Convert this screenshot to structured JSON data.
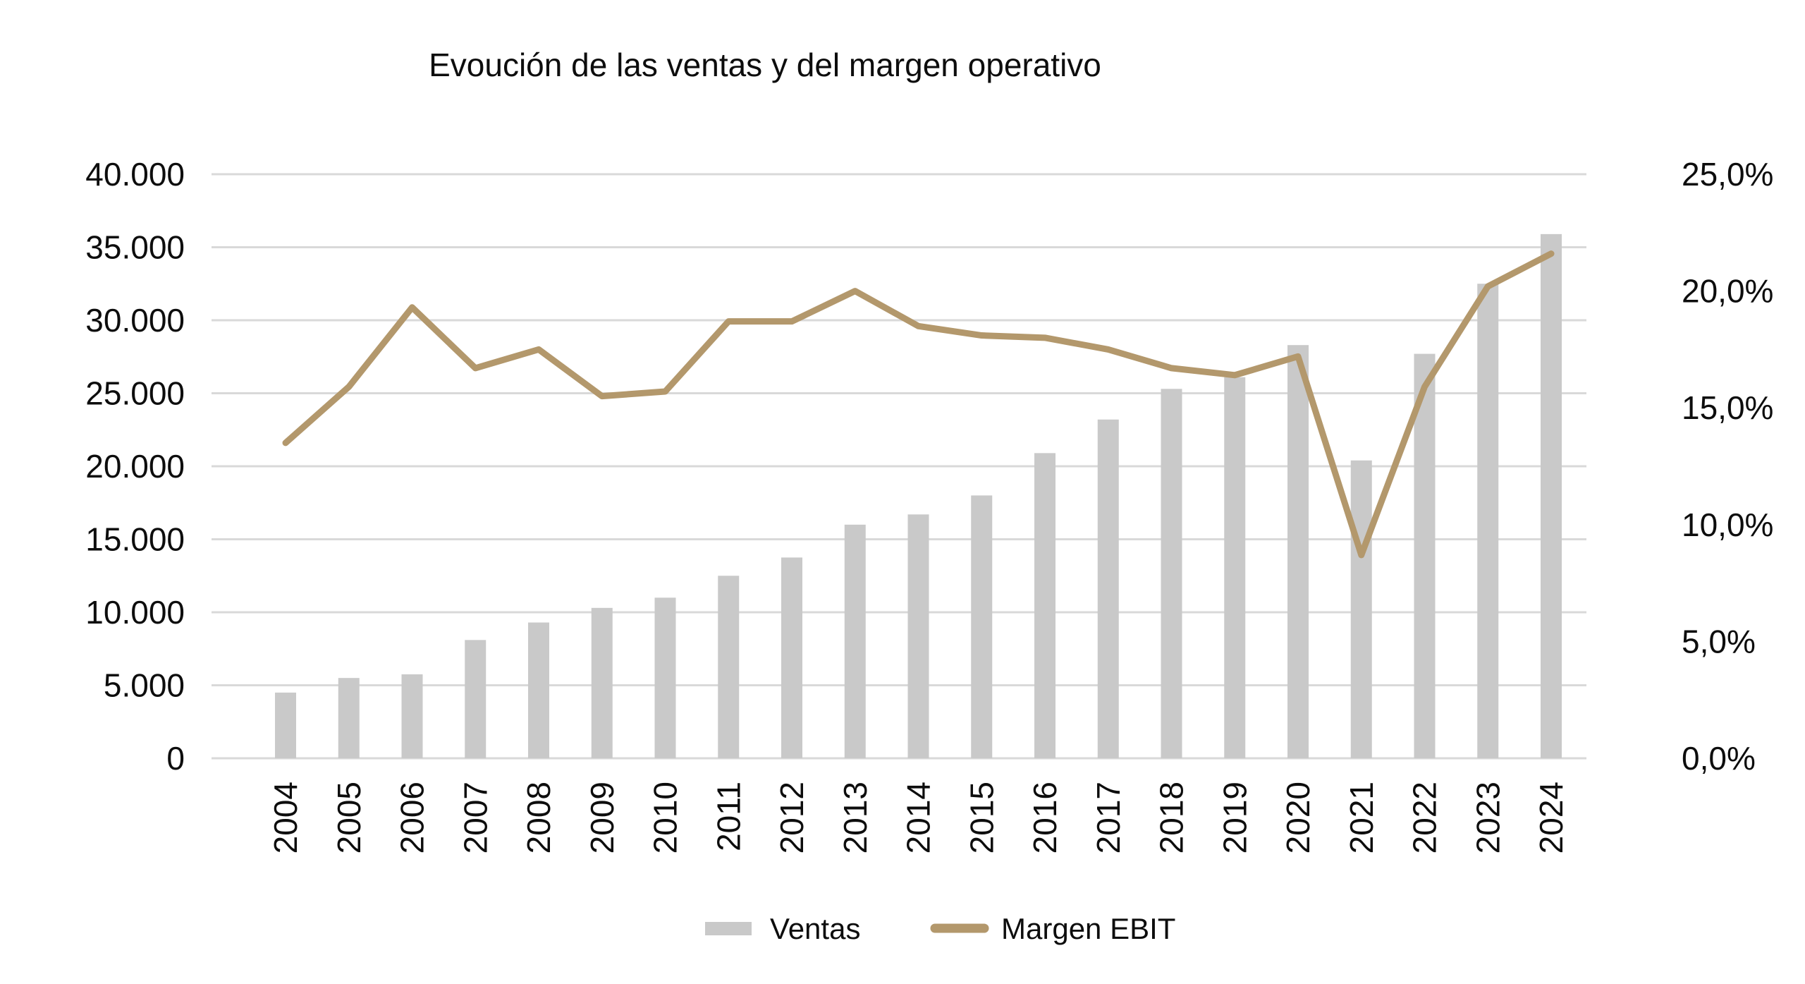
{
  "title": "Evoución de las ventas y del margen operativo",
  "colors": {
    "bar": "#c9c9c9",
    "line": "#b3986c",
    "gridline": "#d9d9d9",
    "text": "#0d0d0d",
    "background": "#ffffff"
  },
  "legend": {
    "items": [
      {
        "label": "Ventas",
        "swatch": "bar-swatch",
        "color": "#c9c9c9"
      },
      {
        "label": "Margen EBIT",
        "swatch": "line-swatch",
        "color": "#b3986c"
      }
    ]
  },
  "chart_data": {
    "type": "bar",
    "subtype": "combo-bar-line-dual-axis",
    "title": "Evoución de las ventas y del margen operativo",
    "categories": [
      "2004",
      "2005",
      "2006",
      "2007",
      "2008",
      "2009",
      "2010",
      "2011",
      "2012",
      "2013",
      "2014",
      "2015",
      "2016",
      "2017",
      "2018",
      "2019",
      "2020",
      "2021",
      "2022",
      "2023",
      "2024"
    ],
    "series": [
      {
        "name": "Ventas",
        "type": "bar",
        "axis": "left",
        "color": "#c9c9c9",
        "values": [
          4500,
          5500,
          5750,
          8100,
          9300,
          10300,
          11000,
          12500,
          13750,
          16000,
          16700,
          18000,
          20900,
          23200,
          25300,
          26100,
          28300,
          20400,
          27700,
          32500,
          35900
        ]
      },
      {
        "name": "Margen EBIT",
        "type": "line",
        "axis": "right",
        "color": "#b3986c",
        "unit": "%",
        "values": [
          13.5,
          15.9,
          19.3,
          16.7,
          17.5,
          15.5,
          15.7,
          18.7,
          18.7,
          20.0,
          18.5,
          18.1,
          18.0,
          17.5,
          16.7,
          16.4,
          17.2,
          8.7,
          15.9,
          20.2,
          21.6
        ]
      }
    ],
    "left_axis": {
      "min": 0,
      "max": 40000,
      "step": 5000,
      "tick_labels": [
        "0",
        "5.000",
        "10.000",
        "15.000",
        "20.000",
        "25.000",
        "30.000",
        "35.000",
        "40.000"
      ]
    },
    "right_axis": {
      "min": 0,
      "max": 25,
      "step": 5,
      "tick_labels": [
        "0,0%",
        "5,0%",
        "10,0%",
        "15,0%",
        "20,0%",
        "25,0%"
      ]
    },
    "grid": "horizontal-only",
    "legend_position": "bottom"
  }
}
